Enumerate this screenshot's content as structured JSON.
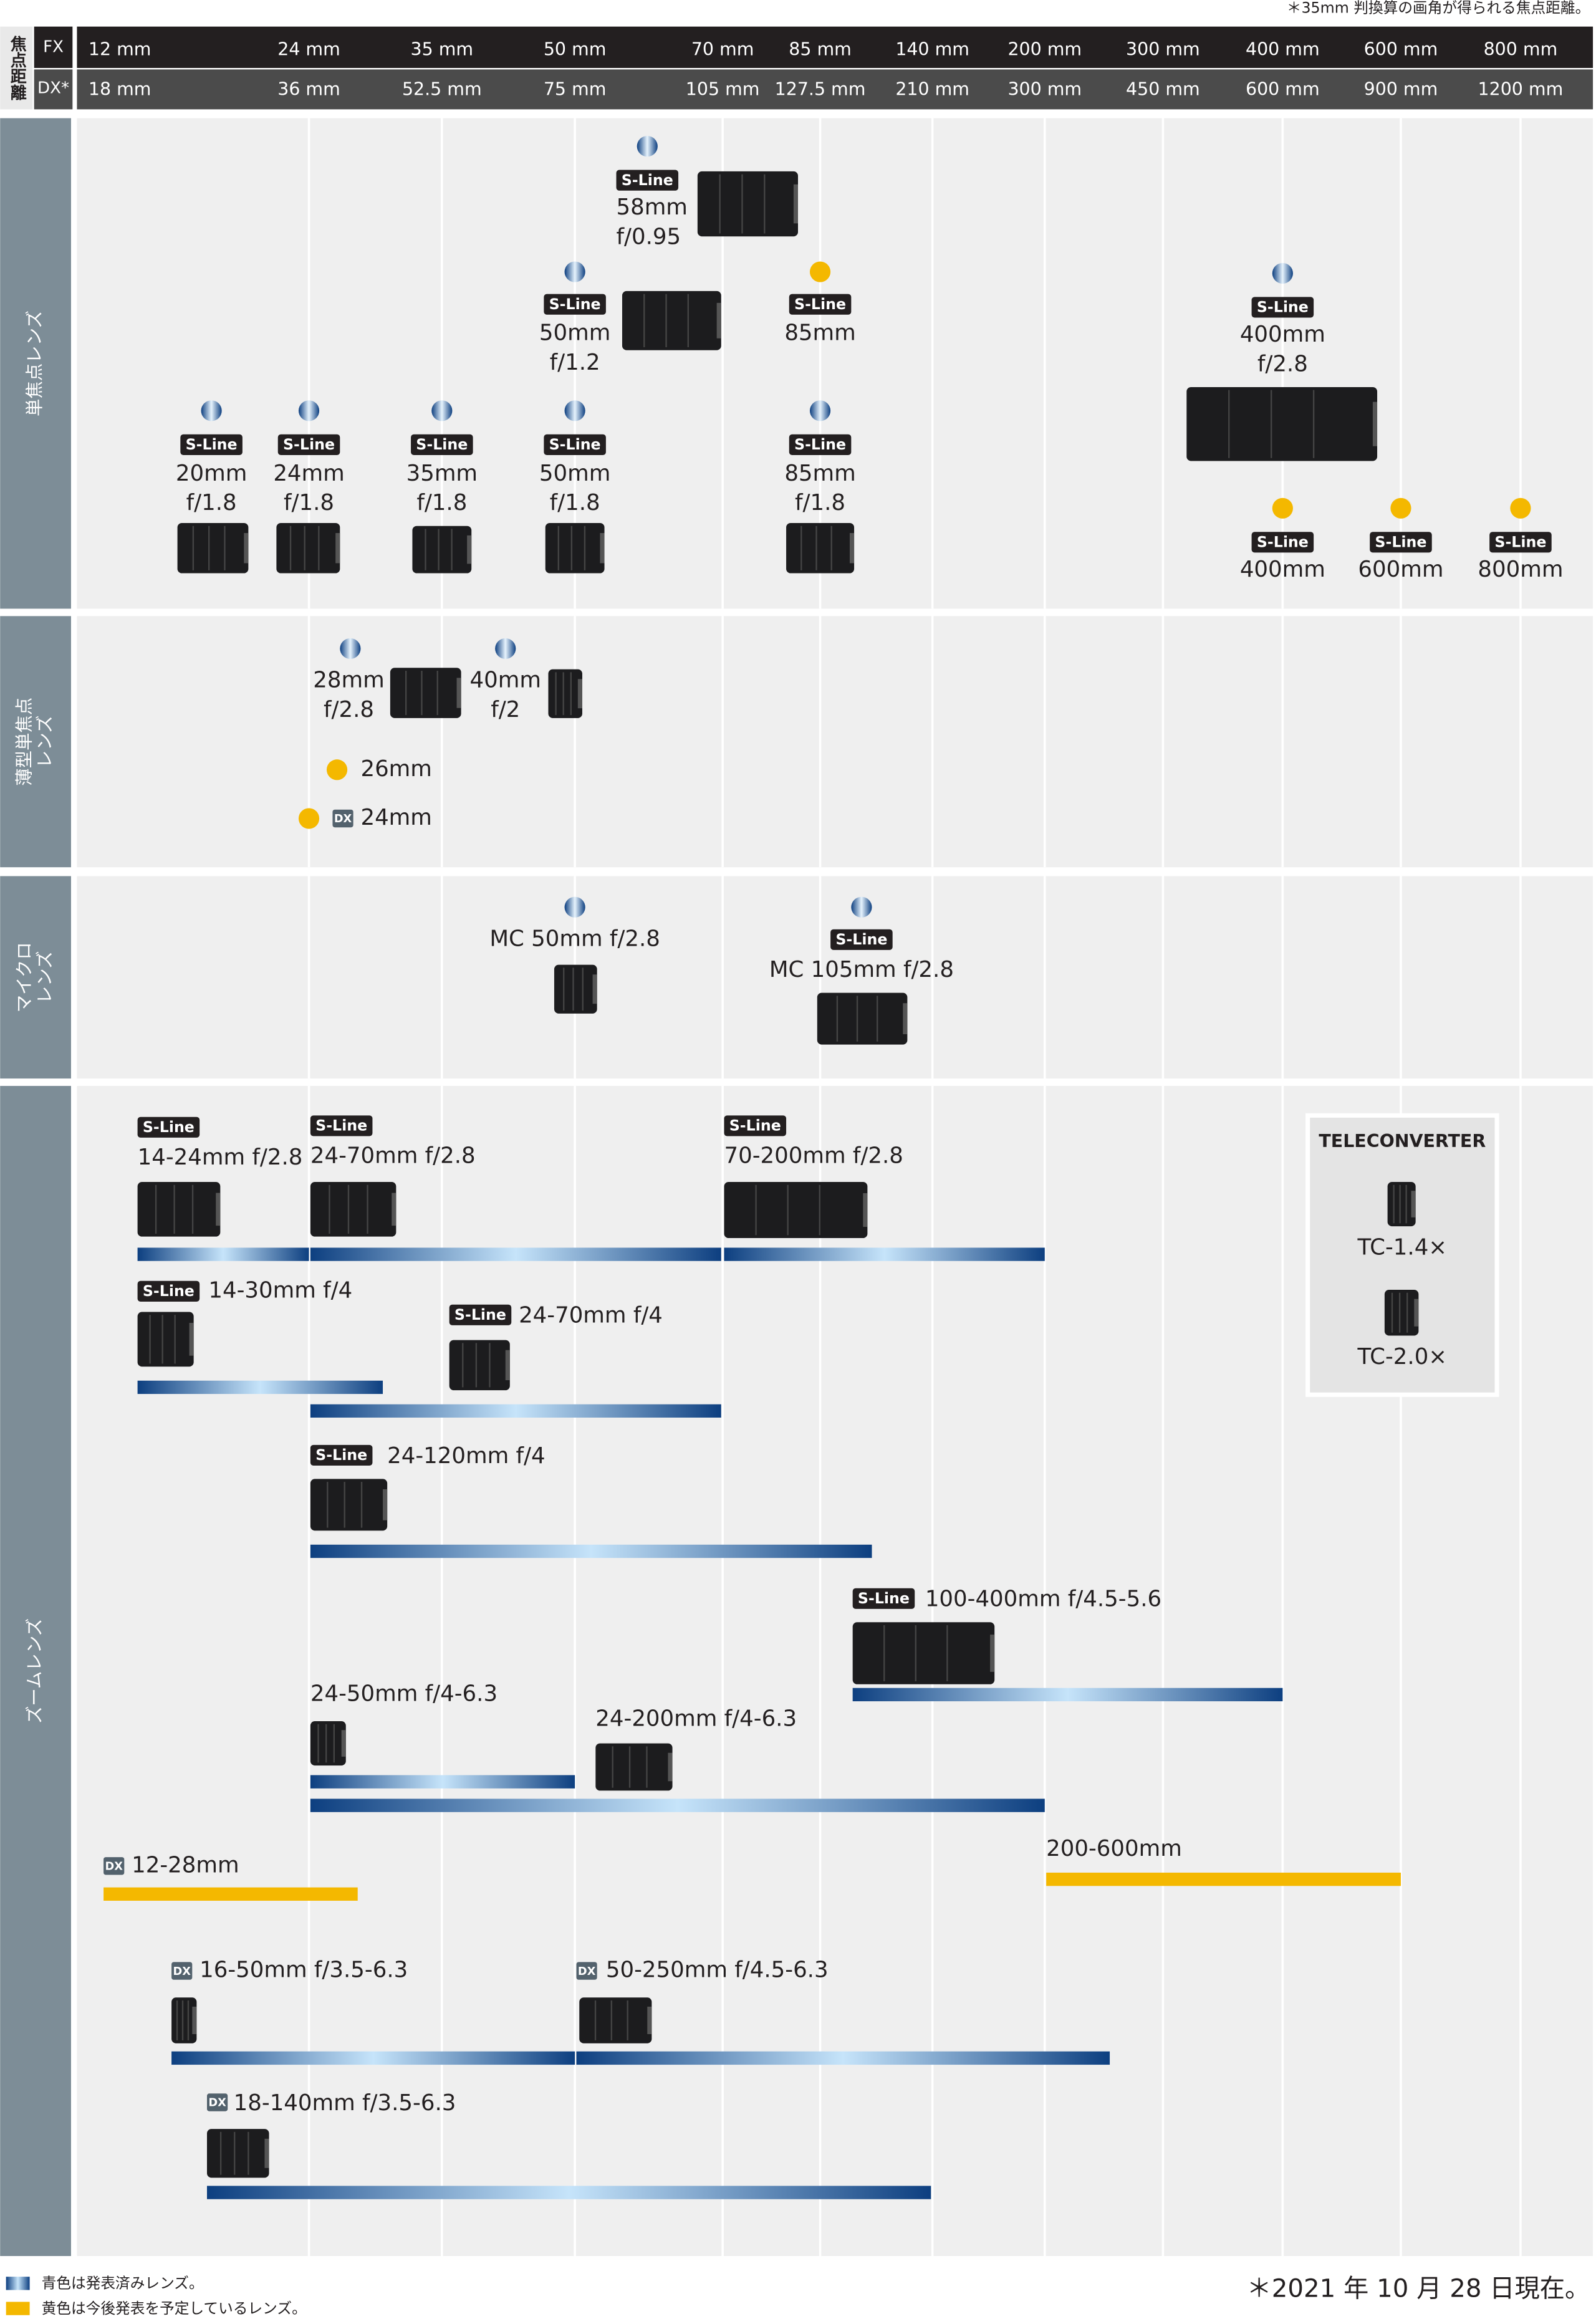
{
  "note_top": "＊35mm 判換算の画角が得られる焦点距離。",
  "header": {
    "label": "焦点距離",
    "fx_label": "FX",
    "dx_label": "DX*",
    "fx": [
      "12 mm",
      "24 mm",
      "35 mm",
      "50 mm",
      "70 mm",
      "85 mm",
      "140 mm",
      "200 mm",
      "300 mm",
      "400 mm",
      "600 mm",
      "800 mm"
    ],
    "dx": [
      "18 mm",
      "36 mm",
      "52.5 mm",
      "75 mm",
      "105 mm",
      "127.5 mm",
      "210 mm",
      "300 mm",
      "450 mm",
      "600 mm",
      "900 mm",
      "1200 mm"
    ]
  },
  "s_line_label": "S-Line",
  "dx_badge_label": "DX",
  "colors": {
    "released": "#0d3f80",
    "planned": "#f4b800"
  },
  "sections": [
    {
      "label": [
        "単焦点レンズ"
      ],
      "lenses": [
        {
          "name": [
            "58mm",
            "f/0.95"
          ],
          "status": "released",
          "s_line": true
        },
        {
          "name": [
            "50mm",
            "f/1.2"
          ],
          "status": "released",
          "s_line": true
        },
        {
          "name": [
            "85mm"
          ],
          "status": "planned",
          "s_line": true
        },
        {
          "name": [
            "400mm",
            "f/2.8"
          ],
          "status": "released",
          "s_line": true
        },
        {
          "name": [
            "20mm",
            "f/1.8"
          ],
          "status": "released",
          "s_line": true
        },
        {
          "name": [
            "24mm",
            "f/1.8"
          ],
          "status": "released",
          "s_line": true
        },
        {
          "name": [
            "35mm",
            "f/1.8"
          ],
          "status": "released",
          "s_line": true
        },
        {
          "name": [
            "50mm",
            "f/1.8"
          ],
          "status": "released",
          "s_line": true
        },
        {
          "name": [
            "85mm",
            "f/1.8"
          ],
          "status": "released",
          "s_line": true
        },
        {
          "name": [
            "400mm"
          ],
          "status": "planned",
          "s_line": true
        },
        {
          "name": [
            "600mm"
          ],
          "status": "planned",
          "s_line": true
        },
        {
          "name": [
            "800mm"
          ],
          "status": "planned",
          "s_line": true
        }
      ]
    },
    {
      "label": [
        "薄型単焦点",
        "レンズ"
      ],
      "lenses": [
        {
          "name": [
            "28mm",
            "f/2.8"
          ],
          "status": "released"
        },
        {
          "name": [
            "40mm",
            "f/2"
          ],
          "status": "released"
        },
        {
          "name": [
            "26mm"
          ],
          "status": "planned"
        },
        {
          "name": [
            "24mm"
          ],
          "status": "planned",
          "dx": true
        }
      ]
    },
    {
      "label": [
        "マイクロ",
        "レンズ"
      ],
      "lenses": [
        {
          "name": [
            "MC 50mm f/2.8"
          ],
          "status": "released"
        },
        {
          "name": [
            "MC 105mm f/2.8"
          ],
          "status": "released",
          "s_line": true
        }
      ]
    },
    {
      "label": [
        "ズームレンズ"
      ],
      "lenses": [
        {
          "name": [
            "14-24mm f/2.8"
          ],
          "status": "released",
          "s_line": true
        },
        {
          "name": [
            "24-70mm f/2.8"
          ],
          "status": "released",
          "s_line": true
        },
        {
          "name": [
            "70-200mm f/2.8"
          ],
          "status": "released",
          "s_line": true
        },
        {
          "name": [
            "14-30mm f/4"
          ],
          "status": "released",
          "s_line": true
        },
        {
          "name": [
            "24-70mm f/4"
          ],
          "status": "released",
          "s_line": true
        },
        {
          "name": [
            "24-120mm f/4"
          ],
          "status": "released",
          "s_line": true
        },
        {
          "name": [
            "100-400mm f/4.5-5.6"
          ],
          "status": "released",
          "s_line": true
        },
        {
          "name": [
            "24-50mm f/4-6.3"
          ],
          "status": "released"
        },
        {
          "name": [
            "24-200mm f/4-6.3"
          ],
          "status": "released"
        },
        {
          "name": [
            "12-28mm"
          ],
          "status": "planned",
          "dx": true
        },
        {
          "name": [
            "200-600mm"
          ],
          "status": "planned"
        },
        {
          "name": [
            "16-50mm f/3.5-6.3"
          ],
          "status": "released",
          "dx": true
        },
        {
          "name": [
            "50-250mm f/4.5-6.3"
          ],
          "status": "released",
          "dx": true
        },
        {
          "name": [
            "18-140mm f/3.5-6.3"
          ],
          "status": "released",
          "dx": true
        }
      ]
    }
  ],
  "teleconverter": {
    "title": "TELECONVERTER",
    "items": [
      "TC-1.4×",
      "TC-2.0×"
    ]
  },
  "legend": [
    "青色は発表済みレンズ。",
    "黄色は今後発表を予定しているレンズ。"
  ],
  "date_note": "＊2021 年 10 月 28 日現在。"
}
